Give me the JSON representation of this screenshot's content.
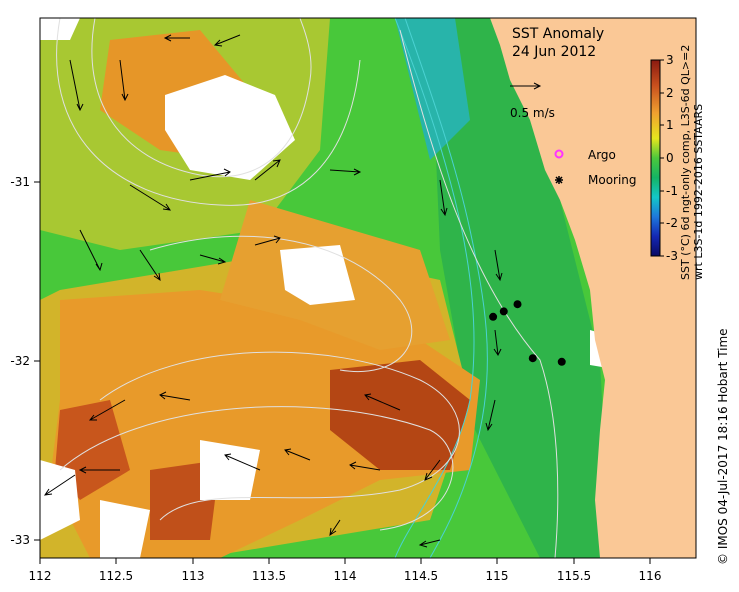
{
  "title": "SST Anomaly",
  "date": "24 Jun 2012",
  "velocity_scale_label": "0.5 m/s",
  "legend": {
    "argo_label": "Argo",
    "mooring_label": "Mooring",
    "argo_color": "#ff33ff",
    "mooring_color": "#000000"
  },
  "colorbar": {
    "label_line1": "SST (°C) 6d ngt-only comp, L3S-6d  QL>=2",
    "label_line2": "wrt L3S-1d 1992-2016 SSTAARS",
    "ticks": [
      "3",
      "2",
      "1",
      "0",
      "-1",
      "-2",
      "-3"
    ]
  },
  "footer": "© IMOS 04-Jul-2017 18:16 Hobart Time",
  "axes": {
    "x_ticks": [
      "112",
      "112.5",
      "113",
      "113.5",
      "114",
      "114.5",
      "115",
      "115.5",
      "116"
    ],
    "y_ticks": [
      "-31",
      "-32",
      "-33"
    ]
  },
  "colors": {
    "land": "#fac896",
    "cloud": "#ffffff",
    "warm_strong": "#b44614",
    "warm": "#e69628",
    "neutral": "#4cc83c",
    "cool": "#14aaaa"
  },
  "chart_data": {
    "type": "heatmap",
    "title": "SST Anomaly",
    "subtitle": "24 Jun 2012",
    "xlim": [
      112,
      116.3
    ],
    "ylim": [
      -33.1,
      -30.1
    ],
    "clim": [
      -3,
      3
    ],
    "moorings": [
      {
        "lon": 114.97,
        "lat": -31.76
      },
      {
        "lon": 115.04,
        "lat": -31.73
      },
      {
        "lon": 115.13,
        "lat": -31.69
      },
      {
        "lon": 115.23,
        "lat": -31.99
      },
      {
        "lon": 115.42,
        "lat": -32.01
      }
    ]
  }
}
